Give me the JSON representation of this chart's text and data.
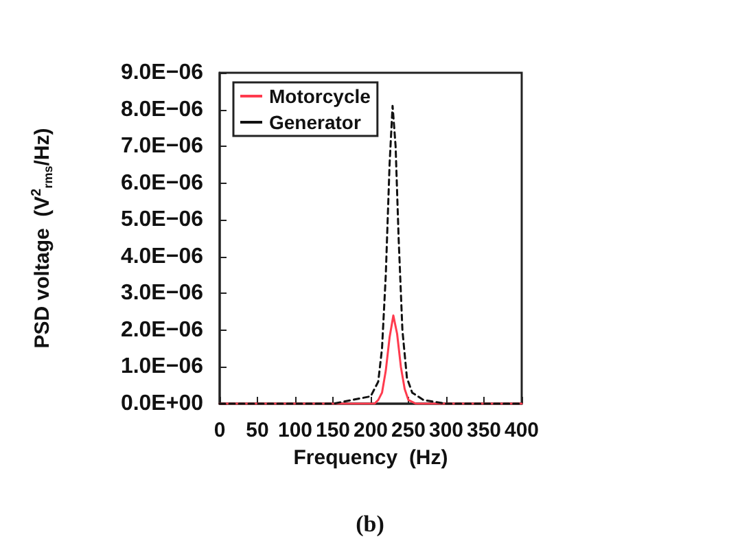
{
  "chart_data": {
    "type": "line",
    "xlabel": "Frequency  (Hz)",
    "ylabel": "PSD voltage  (V$^{2}$$_{rms}$/Hz)",
    "annotations": [
      "(b)"
    ],
    "xlim": [
      0,
      400
    ],
    "xticks": [
      0,
      50,
      100,
      150,
      200,
      250,
      300,
      350,
      400
    ],
    "ylim": [
      0,
      9e-06
    ],
    "yticks": [
      {
        "value": 0,
        "label": "0.0E+00"
      },
      {
        "value": 1e-06,
        "label": "1.0E−06"
      },
      {
        "value": 2e-06,
        "label": "2.0E−06"
      },
      {
        "value": 3e-06,
        "label": "3.0E−06"
      },
      {
        "value": 4e-06,
        "label": "4.0E−06"
      },
      {
        "value": 5e-06,
        "label": "5.0E−06"
      },
      {
        "value": 6e-06,
        "label": "6.0E−06"
      },
      {
        "value": 7e-06,
        "label": "7.0E−06"
      },
      {
        "value": 8e-06,
        "label": "8.0E−06"
      },
      {
        "value": 9e-06,
        "label": "9.0E−06"
      }
    ],
    "grid": false,
    "legend": "top left",
    "marker": "none",
    "series": [
      {
        "name": "Motorcycle",
        "color": "#ff3b4e",
        "line_style": "solid",
        "x": [
          0,
          100,
          200,
          205,
          210,
          215,
          220,
          225,
          230,
          235,
          240,
          245,
          250,
          260,
          300,
          400
        ],
        "values": [
          0,
          0,
          0,
          0,
          1e-07,
          3e-07,
          9e-07,
          1.8e-06,
          2.4e-06,
          1.9e-06,
          1e-06,
          4e-07,
          1e-07,
          0,
          0,
          0
        ]
      },
      {
        "name": "Generator",
        "color": "#111111",
        "line_style": "dashed",
        "x": [
          0,
          100,
          150,
          175,
          200,
          210,
          215,
          220,
          225,
          229,
          233,
          237,
          242,
          248,
          255,
          270,
          300,
          400
        ],
        "values": [
          0,
          0,
          0,
          1e-07,
          2e-07,
          6e-07,
          1.5e-06,
          3.5e-06,
          6.5e-06,
          8.1e-06,
          7e-06,
          4.5e-06,
          2e-06,
          7e-07,
          3e-07,
          1e-07,
          0,
          0
        ]
      }
    ]
  }
}
